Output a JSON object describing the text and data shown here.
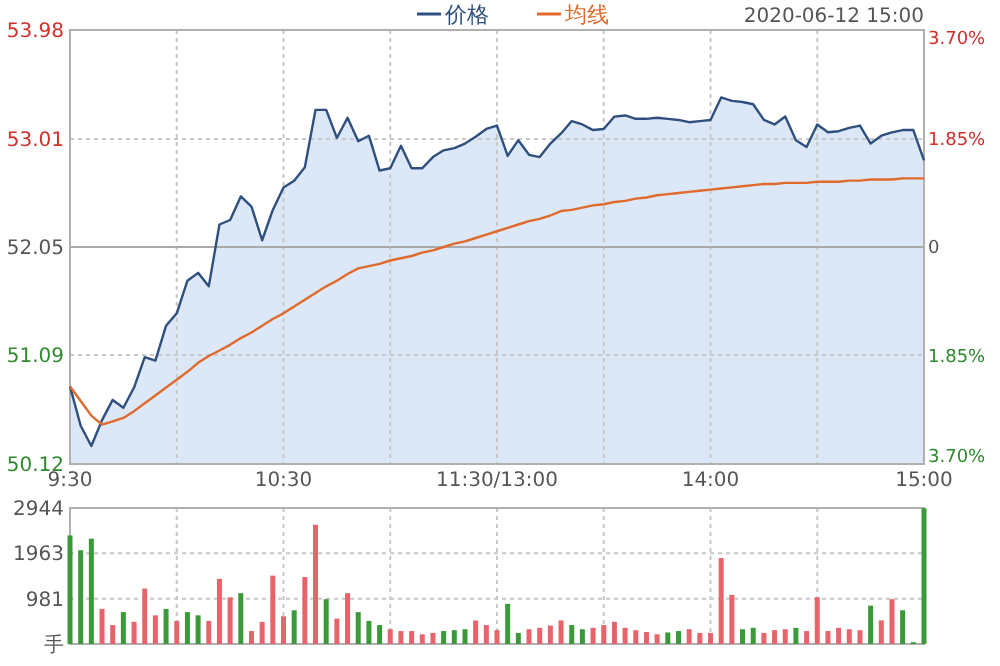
{
  "chart_data": [
    {
      "type": "line",
      "subtitle": "2020-06-12 15:00",
      "legend": "top",
      "categories": [
        "9:30",
        null,
        null,
        null,
        null,
        null,
        null,
        null,
        null,
        null,
        null,
        null,
        null,
        null,
        null,
        null,
        null,
        null,
        null,
        null,
        "10:30",
        null,
        null,
        null,
        null,
        null,
        null,
        null,
        null,
        null,
        null,
        null,
        null,
        null,
        null,
        null,
        null,
        null,
        null,
        null,
        "11:30/13:00",
        null,
        null,
        null,
        null,
        null,
        null,
        null,
        null,
        null,
        null,
        null,
        null,
        null,
        null,
        null,
        null,
        null,
        null,
        null,
        "14:00",
        null,
        null,
        null,
        null,
        null,
        null,
        null,
        null,
        null,
        null,
        null,
        null,
        null,
        null,
        null,
        null,
        null,
        null,
        null,
        "15:00"
      ],
      "ylim": [
        50.12,
        53.98
      ],
      "yticks": [
        50.12,
        51.09,
        52.05,
        53.01,
        53.98
      ],
      "y2lim": [
        -3.7,
        3.7
      ],
      "y2ticks": [
        {
          "value": -3.7,
          "label": "3.70%"
        },
        {
          "value": -1.85,
          "label": "1.85%"
        },
        0,
        {
          "value": 1.85,
          "label": "1.85%"
        },
        {
          "value": 3.7,
          "label": "3.70%"
        }
      ],
      "grid": true,
      "ref_lines": [
        {
          "axis": "y",
          "value": 52.05,
          "color": "#aaaaaa"
        }
      ],
      "series": [
        {
          "name": "价格",
          "type": "area",
          "color": "#2f4f7f",
          "values": [
            50.81,
            50.46,
            50.28,
            50.51,
            50.69,
            50.62,
            50.8,
            51.07,
            51.04,
            51.35,
            51.46,
            51.75,
            51.82,
            51.7,
            52.25,
            52.29,
            52.5,
            52.41,
            52.11,
            52.38,
            52.58,
            52.64,
            52.76,
            53.27,
            53.27,
            53.02,
            53.2,
            52.99,
            53.04,
            52.73,
            52.75,
            52.95,
            52.75,
            52.75,
            52.85,
            52.91,
            52.93,
            52.97,
            53.03,
            53.1,
            53.13,
            52.86,
            53.0,
            52.87,
            52.85,
            52.97,
            53.06,
            53.17,
            53.14,
            53.09,
            53.1,
            53.21,
            53.22,
            53.19,
            53.19,
            53.2,
            53.19,
            53.18,
            53.16,
            53.17,
            53.18,
            53.38,
            53.35,
            53.34,
            53.32,
            53.18,
            53.14,
            53.21,
            53.0,
            52.94,
            53.14,
            53.07,
            53.08,
            53.11,
            53.13,
            52.97,
            53.04,
            53.07,
            53.09,
            53.09,
            52.82
          ]
        },
        {
          "name": "均线",
          "type": "line",
          "color": "#e06a2c",
          "values": [
            50.81,
            50.68,
            50.55,
            50.47,
            50.5,
            50.53,
            50.59,
            50.66,
            50.73,
            50.8,
            50.87,
            50.94,
            51.02,
            51.08,
            51.13,
            51.18,
            51.24,
            51.29,
            51.35,
            51.41,
            51.46,
            51.52,
            51.58,
            51.64,
            51.7,
            51.75,
            51.81,
            51.86,
            51.88,
            51.9,
            51.93,
            51.95,
            51.97,
            52.0,
            52.02,
            52.05,
            52.08,
            52.1,
            52.13,
            52.16,
            52.19,
            52.22,
            52.25,
            52.28,
            52.3,
            52.33,
            52.37,
            52.38,
            52.4,
            52.42,
            52.43,
            52.45,
            52.46,
            52.48,
            52.49,
            52.51,
            52.52,
            52.53,
            52.54,
            52.55,
            52.56,
            52.57,
            52.58,
            52.59,
            52.6,
            52.61,
            52.61,
            52.62,
            52.62,
            52.62,
            52.63,
            52.63,
            52.63,
            52.64,
            52.64,
            52.65,
            52.65,
            52.65,
            52.66,
            52.66,
            52.66
          ]
        }
      ]
    },
    {
      "type": "bar",
      "tick_labels": "y",
      "grid": true,
      "categories": [
        null,
        null,
        null,
        null,
        null,
        null,
        null,
        null,
        null,
        null,
        null,
        null,
        null,
        null,
        null,
        null,
        null,
        null,
        null,
        null,
        null,
        null,
        null,
        null,
        null,
        null,
        null,
        null,
        null,
        null,
        null,
        null,
        null,
        null,
        null,
        null,
        null,
        null,
        null,
        null,
        null,
        null,
        null,
        null,
        null,
        null,
        null,
        null,
        null,
        null,
        null,
        null,
        null,
        null,
        null,
        null,
        null,
        null,
        null,
        null,
        null,
        null,
        null,
        null,
        null,
        null,
        null,
        null,
        null,
        null,
        null,
        null,
        null,
        null,
        null,
        null,
        null,
        null,
        null,
        null,
        null
      ],
      "ylim": [
        0,
        2944
      ],
      "yticks": [
        {
          "value": 0,
          "label": "手"
        },
        981,
        1963,
        2944
      ],
      "values": [
        2350,
        2030,
        2280,
        760,
        410,
        690,
        480,
        1200,
        620,
        760,
        500,
        690,
        620,
        500,
        1410,
        1010,
        1100,
        280,
        480,
        1480,
        600,
        730,
        1450,
        2580,
        970,
        550,
        1100,
        690,
        500,
        410,
        320,
        280,
        280,
        210,
        240,
        280,
        300,
        320,
        510,
        410,
        300,
        870,
        240,
        320,
        350,
        400,
        510,
        410,
        320,
        350,
        410,
        480,
        350,
        300,
        260,
        210,
        250,
        280,
        320,
        240,
        240,
        1860,
        1060,
        320,
        350,
        240,
        300,
        320,
        350,
        280,
        1010,
        280,
        350,
        320,
        300,
        830,
        510,
        970,
        730,
        40,
        2940
      ],
      "colors": [
        "#3a9a3a",
        "#3a9a3a",
        "#3a9a3a",
        "#e8636b",
        "#e8636b",
        "#3a9a3a",
        "#e8636b",
        "#e8636b",
        "#e8636b",
        "#3a9a3a",
        "#e8636b",
        "#3a9a3a",
        "#3a9a3a",
        "#e8636b",
        "#e8636b",
        "#e8636b",
        "#3a9a3a",
        "#e8636b",
        "#e8636b",
        "#e8636b",
        "#e8636b",
        "#3a9a3a",
        "#e8636b",
        "#e8636b",
        "#3a9a3a",
        "#e8636b",
        "#e8636b",
        "#3a9a3a",
        "#3a9a3a",
        "#3a9a3a",
        "#e8636b",
        "#e8636b",
        "#e8636b",
        "#e8636b",
        "#e8636b",
        "#3a9a3a",
        "#3a9a3a",
        "#3a9a3a",
        "#e8636b",
        "#e8636b",
        "#e8636b",
        "#3a9a3a",
        "#3a9a3a",
        "#e8636b",
        "#e8636b",
        "#e8636b",
        "#e8636b",
        "#3a9a3a",
        "#3a9a3a",
        "#e8636b",
        "#e8636b",
        "#e8636b",
        "#e8636b",
        "#e8636b",
        "#e8636b",
        "#e8636b",
        "#3a9a3a",
        "#3a9a3a",
        "#e8636b",
        "#e8636b",
        "#e8636b",
        "#e8636b",
        "#e8636b",
        "#3a9a3a",
        "#3a9a3a",
        "#e8636b",
        "#e8636b",
        "#e8636b",
        "#3a9a3a",
        "#e8636b",
        "#e8636b",
        "#e8636b",
        "#e8636b",
        "#e8636b",
        "#e8636b",
        "#3a9a3a",
        "#e8636b",
        "#e8636b",
        "#3a9a3a",
        "#3a9a3a",
        "#3a9a3a"
      ]
    }
  ]
}
